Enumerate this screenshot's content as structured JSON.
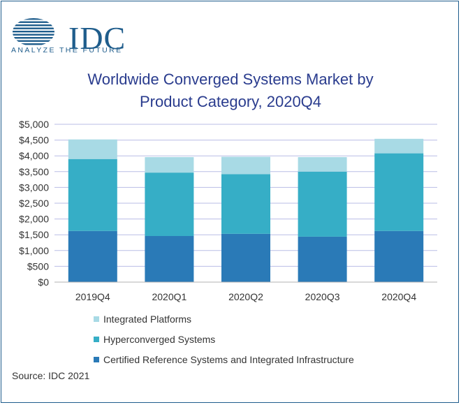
{
  "brand": {
    "name": "IDC",
    "tagline": "ANALYZE THE FUTURE",
    "color": "#1f5d8c"
  },
  "chart_data": {
    "type": "bar",
    "stacked": true,
    "title_lines": [
      "Worldwide Converged Systems Market by",
      "Product Category, 2020Q4"
    ],
    "categories": [
      "2019Q4",
      "2020Q1",
      "2020Q2",
      "2020Q3",
      "2020Q4"
    ],
    "series": [
      {
        "name": "Certified Reference Systems and Integrated Infrastructure",
        "color": "#2a7ab7",
        "values": [
          1620,
          1460,
          1530,
          1440,
          1620
        ]
      },
      {
        "name": "Hyperconverged Systems",
        "color": "#36aec6",
        "values": [
          2280,
          2010,
          1890,
          2060,
          2460
        ]
      },
      {
        "name": "Integrated Platforms",
        "color": "#a8dae5",
        "values": [
          620,
          490,
          550,
          460,
          460
        ]
      }
    ],
    "ylim": [
      0,
      5000
    ],
    "yticks": [
      0,
      500,
      1000,
      1500,
      2000,
      2500,
      3000,
      3500,
      4000,
      4500,
      5000
    ],
    "ytick_labels": [
      "$0",
      "$500",
      "$1,000",
      "$1,500",
      "$2,000",
      "$2,500",
      "$3,000",
      "$3,500",
      "$4,000",
      "$4,500",
      "$5,000"
    ],
    "grid": true,
    "legend_position": "bottom",
    "legend_order": [
      "Integrated Platforms",
      "Hyperconverged Systems",
      "Certified Reference Systems and Integrated Infrastructure"
    ],
    "gridline_color": "#b9bde6"
  },
  "source": "Source: IDC 2021"
}
